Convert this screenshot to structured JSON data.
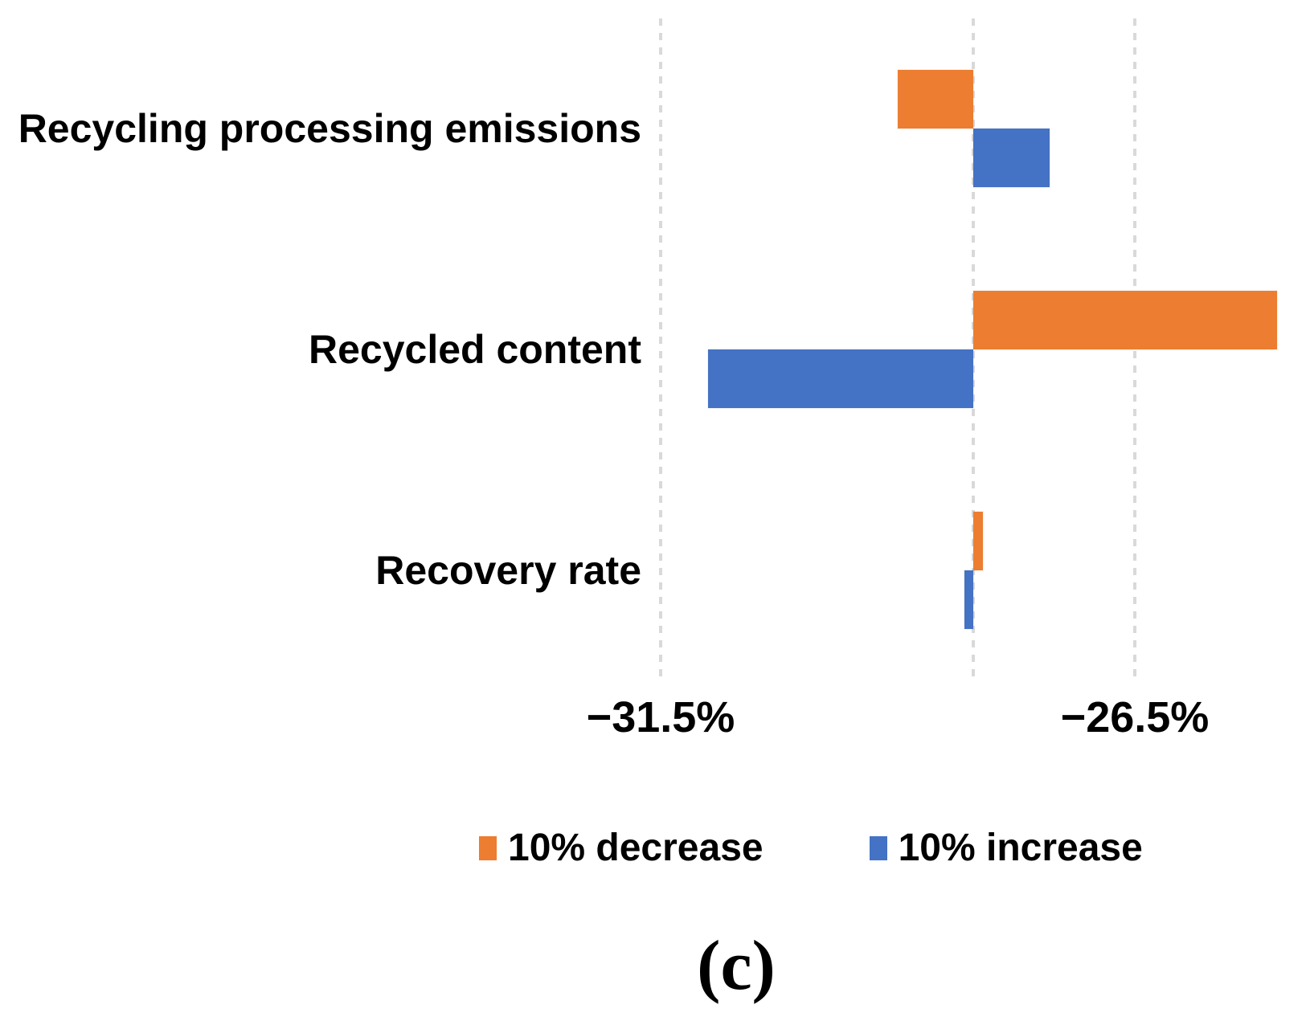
{
  "chart_data": {
    "type": "bar",
    "orientation": "horizontal",
    "title": "",
    "categories": [
      "Recycling processing emissions",
      "Recycled content",
      "Recovery rate"
    ],
    "series": [
      {
        "name": "10% decrease",
        "color": "#ED7D31",
        "values": [
          -29.0,
          -25.0,
          -28.1
        ]
      },
      {
        "name": "10% increase",
        "color": "#4472C4",
        "values": [
          -27.4,
          -31.0,
          -28.3
        ]
      }
    ],
    "baseline": -28.2,
    "unit": "%",
    "x_ticks": [
      {
        "label": "−31.5%",
        "value": -31.5
      },
      {
        "label": "−26.5%",
        "value": -26.5
      }
    ],
    "xlim": [
      -31.7,
      -24.7
    ],
    "grid": "vertical-dashed",
    "gridline_color": "#D9D9D9",
    "legend_position": "bottom"
  },
  "caption": {
    "label": "(c)"
  }
}
